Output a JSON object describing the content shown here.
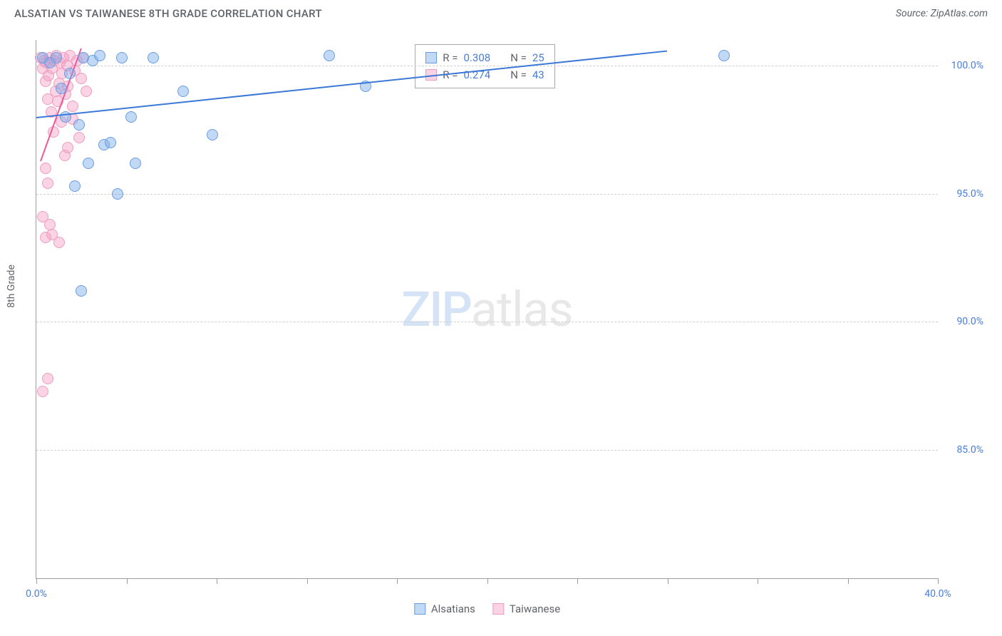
{
  "title": "ALSATIAN VS TAIWANESE 8TH GRADE CORRELATION CHART",
  "source": "Source: ZipAtlas.com",
  "y_axis_label": "8th Grade",
  "watermark": {
    "part_a": "ZIP",
    "part_b": "atlas"
  },
  "colors": {
    "series_a_fill": "rgba(120,170,235,0.45)",
    "series_a_stroke": "#6a9de0",
    "series_b_fill": "rgba(245,160,195,0.45)",
    "series_b_stroke": "#ef9cc0",
    "trend_a": "#3b78d8",
    "trend_b": "#ec5a9a",
    "tick_text": "#4a7dd6",
    "axis_text": "#5f6368"
  },
  "chart": {
    "type": "scatter",
    "xlim": [
      0,
      40
    ],
    "ylim": [
      80,
      101
    ],
    "y_ticks": [
      {
        "v": 100,
        "label": "100.0%"
      },
      {
        "v": 95,
        "label": "95.0%"
      },
      {
        "v": 90,
        "label": "90.0%"
      },
      {
        "v": 85,
        "label": "85.0%"
      }
    ],
    "x_ticks": [
      0,
      4,
      8,
      12,
      16,
      20,
      24,
      28,
      32,
      36,
      40
    ],
    "x_tick_labels": [
      {
        "v": 0,
        "label": "0.0%"
      },
      {
        "v": 40,
        "label": "40.0%"
      }
    ],
    "marker_radius": 8,
    "series": [
      {
        "name": "Alsatians",
        "color_fill": "rgba(120,170,235,0.45)",
        "color_stroke": "#6a9de0",
        "R": "0.308",
        "N": "25",
        "trend": {
          "x1": 0,
          "y1": 98.0,
          "x2": 28,
          "y2": 100.6,
          "color": "#3b78d8"
        },
        "points": [
          {
            "x": 0.3,
            "y": 100.3
          },
          {
            "x": 0.6,
            "y": 100.1
          },
          {
            "x": 0.9,
            "y": 100.3
          },
          {
            "x": 1.1,
            "y": 99.1
          },
          {
            "x": 1.3,
            "y": 98.0
          },
          {
            "x": 1.5,
            "y": 99.7
          },
          {
            "x": 1.7,
            "y": 95.3
          },
          {
            "x": 1.9,
            "y": 97.7
          },
          {
            "x": 2.1,
            "y": 100.3
          },
          {
            "x": 2.3,
            "y": 96.2
          },
          {
            "x": 2.5,
            "y": 100.2
          },
          {
            "x": 2.8,
            "y": 100.4
          },
          {
            "x": 3.0,
            "y": 96.9
          },
          {
            "x": 3.3,
            "y": 97.0
          },
          {
            "x": 3.6,
            "y": 95.0
          },
          {
            "x": 3.8,
            "y": 100.3
          },
          {
            "x": 4.2,
            "y": 98.0
          },
          {
            "x": 4.4,
            "y": 96.2
          },
          {
            "x": 5.2,
            "y": 100.3
          },
          {
            "x": 6.5,
            "y": 99.0
          },
          {
            "x": 7.8,
            "y": 97.3
          },
          {
            "x": 13.0,
            "y": 100.4
          },
          {
            "x": 14.6,
            "y": 99.2
          },
          {
            "x": 30.5,
            "y": 100.4
          },
          {
            "x": 2.0,
            "y": 91.2
          }
        ]
      },
      {
        "name": "Taiwanese",
        "color_fill": "rgba(245,160,195,0.45)",
        "color_stroke": "#ef9cc0",
        "R": "0.274",
        "N": "43",
        "trend": {
          "x1": 0.2,
          "y1": 96.3,
          "x2": 2.0,
          "y2": 100.7,
          "color": "#ec5a9a"
        },
        "points": [
          {
            "x": 0.2,
            "y": 100.3
          },
          {
            "x": 0.3,
            "y": 99.9
          },
          {
            "x": 0.35,
            "y": 100.2
          },
          {
            "x": 0.4,
            "y": 99.4
          },
          {
            "x": 0.45,
            "y": 100.1
          },
          {
            "x": 0.5,
            "y": 98.7
          },
          {
            "x": 0.55,
            "y": 99.6
          },
          {
            "x": 0.6,
            "y": 100.3
          },
          {
            "x": 0.65,
            "y": 98.2
          },
          {
            "x": 0.7,
            "y": 99.9
          },
          {
            "x": 0.75,
            "y": 97.4
          },
          {
            "x": 0.8,
            "y": 100.2
          },
          {
            "x": 0.85,
            "y": 99.0
          },
          {
            "x": 0.9,
            "y": 100.4
          },
          {
            "x": 0.95,
            "y": 98.6
          },
          {
            "x": 1.0,
            "y": 99.3
          },
          {
            "x": 1.05,
            "y": 100.1
          },
          {
            "x": 1.1,
            "y": 97.8
          },
          {
            "x": 1.15,
            "y": 99.7
          },
          {
            "x": 1.2,
            "y": 100.3
          },
          {
            "x": 1.25,
            "y": 96.5
          },
          {
            "x": 1.3,
            "y": 98.9
          },
          {
            "x": 1.35,
            "y": 100.0
          },
          {
            "x": 1.4,
            "y": 99.2
          },
          {
            "x": 1.5,
            "y": 100.4
          },
          {
            "x": 1.6,
            "y": 98.4
          },
          {
            "x": 1.7,
            "y": 99.8
          },
          {
            "x": 1.8,
            "y": 100.2
          },
          {
            "x": 1.9,
            "y": 97.2
          },
          {
            "x": 2.0,
            "y": 99.5
          },
          {
            "x": 2.1,
            "y": 100.3
          },
          {
            "x": 2.2,
            "y": 99.0
          },
          {
            "x": 0.4,
            "y": 96.0
          },
          {
            "x": 0.5,
            "y": 95.4
          },
          {
            "x": 0.3,
            "y": 94.1
          },
          {
            "x": 0.6,
            "y": 93.8
          },
          {
            "x": 0.4,
            "y": 93.3
          },
          {
            "x": 0.7,
            "y": 93.4
          },
          {
            "x": 1.0,
            "y": 93.1
          },
          {
            "x": 0.5,
            "y": 87.8
          },
          {
            "x": 0.3,
            "y": 87.3
          },
          {
            "x": 1.4,
            "y": 96.8
          },
          {
            "x": 1.6,
            "y": 97.9
          }
        ]
      }
    ]
  },
  "stats_legend": {
    "rows": [
      {
        "swatch_fill": "rgba(120,170,235,0.45)",
        "swatch_stroke": "#6a9de0",
        "r_label": "R =",
        "r_val": "0.308",
        "n_label": "N =",
        "n_val": "25"
      },
      {
        "swatch_fill": "rgba(245,160,195,0.45)",
        "swatch_stroke": "#ef9cc0",
        "r_label": "R =",
        "r_val": "0.274",
        "n_label": "N =",
        "n_val": "43"
      }
    ]
  },
  "bottom_legend": [
    {
      "swatch_fill": "rgba(120,170,235,0.45)",
      "swatch_stroke": "#6a9de0",
      "label": "Alsatians"
    },
    {
      "swatch_fill": "rgba(245,160,195,0.45)",
      "swatch_stroke": "#ef9cc0",
      "label": "Taiwanese"
    }
  ]
}
